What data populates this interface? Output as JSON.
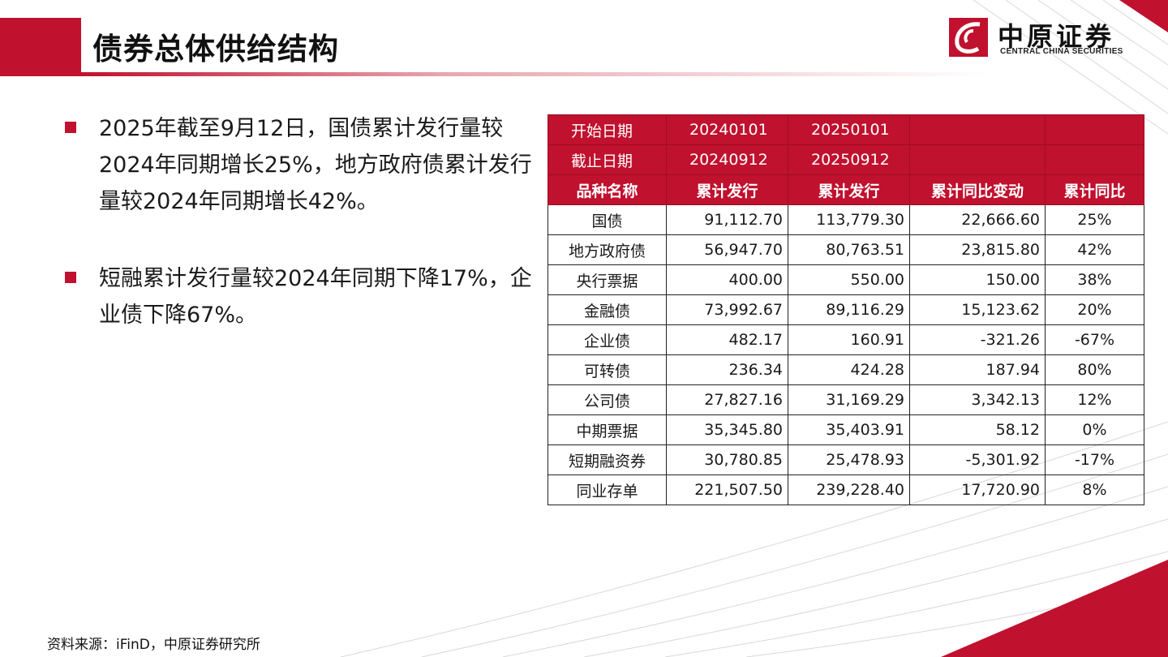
{
  "header": {
    "title": "债券总体供给结构"
  },
  "logo": {
    "cn": "中原证券",
    "en": "CENTRAL CHINA SECURITIES"
  },
  "bullets": [
    "2025年截至9月12日，国债累计发行量较2024年同期增长25%，地方政府债累计发行量较2024年同期增长42%。",
    "短融累计发行量较2024年同期下降17%，企业债下降67%。"
  ],
  "table": {
    "start_label": "开始日期",
    "start_2024": "20240101",
    "start_2025": "20250101",
    "end_label": "截止日期",
    "end_2024": "20240912",
    "end_2025": "20250912",
    "columns": [
      "品种名称",
      "累计发行",
      "累计发行",
      "累计同比变动",
      "累计同比"
    ],
    "rows": [
      [
        "国债",
        "91,112.70",
        "113,779.30",
        "22,666.60",
        "25%"
      ],
      [
        "地方政府债",
        "56,947.70",
        "80,763.51",
        "23,815.80",
        "42%"
      ],
      [
        "央行票据",
        "400.00",
        "550.00",
        "150.00",
        "38%"
      ],
      [
        "金融债",
        "73,992.67",
        "89,116.29",
        "15,123.62",
        "20%"
      ],
      [
        "企业债",
        "482.17",
        "160.91",
        "-321.26",
        "-67%"
      ],
      [
        "可转债",
        "236.34",
        "424.28",
        "187.94",
        "80%"
      ],
      [
        "公司债",
        "27,827.16",
        "31,169.29",
        "3,342.13",
        "12%"
      ],
      [
        "中期票据",
        "35,345.80",
        "35,403.91",
        "58.12",
        "0%"
      ],
      [
        "短期融资券",
        "30,780.85",
        "25,478.93",
        "-5,301.92",
        "-17%"
      ],
      [
        "同业存单",
        "221,507.50",
        "239,228.40",
        "17,720.90",
        "8%"
      ]
    ]
  },
  "footer": {
    "source": "资料来源：iFinD，中原证券研究所"
  },
  "colors": {
    "accent": "#c0112e"
  }
}
